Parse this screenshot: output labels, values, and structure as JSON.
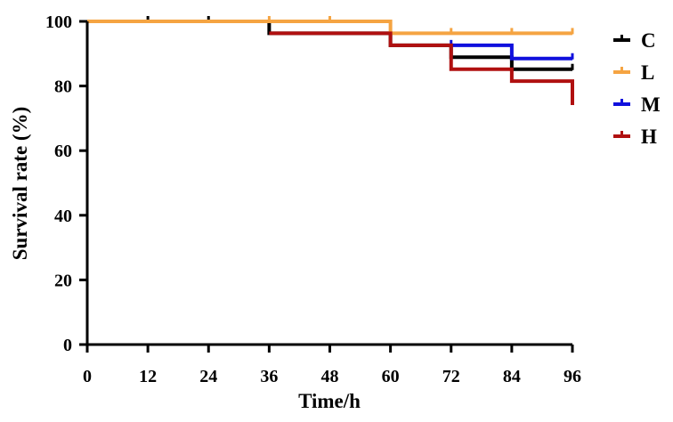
{
  "chart_data": {
    "type": "line",
    "step": true,
    "xlabel": "Time/h",
    "ylabel": "Survival rate (%)",
    "xlim": [
      0,
      96
    ],
    "ylim": [
      0,
      100
    ],
    "x_ticks": [
      0,
      12,
      24,
      36,
      48,
      60,
      72,
      84,
      96
    ],
    "y_ticks": [
      0,
      20,
      40,
      60,
      80,
      100
    ],
    "grid": false,
    "legend_position": "right",
    "series": [
      {
        "name": "C",
        "color": "#000000",
        "points": [
          [
            0,
            100
          ],
          [
            36,
            96.3
          ],
          [
            60,
            92.6
          ],
          [
            72,
            88.9
          ],
          [
            84,
            85.2
          ],
          [
            96,
            85.2
          ]
        ],
        "censor_x": [
          12,
          24,
          96
        ]
      },
      {
        "name": "L",
        "color": "#f5a442",
        "points": [
          [
            0,
            100
          ],
          [
            36,
            100
          ],
          [
            60,
            96.3
          ],
          [
            96,
            96.3
          ]
        ],
        "censor_x": [
          36,
          48,
          72,
          84,
          96
        ]
      },
      {
        "name": "M",
        "color": "#1010dd",
        "points": [
          [
            72,
            92.6
          ],
          [
            84,
            88.5
          ],
          [
            96,
            88.5
          ]
        ],
        "censor_x": [
          72,
          96
        ]
      },
      {
        "name": "H",
        "color": "#b01010",
        "points": [
          [
            36,
            96.3
          ],
          [
            60,
            92.6
          ],
          [
            72,
            85.2
          ],
          [
            84,
            81.5
          ],
          [
            96,
            74.1
          ]
        ],
        "censor_x": []
      }
    ]
  }
}
